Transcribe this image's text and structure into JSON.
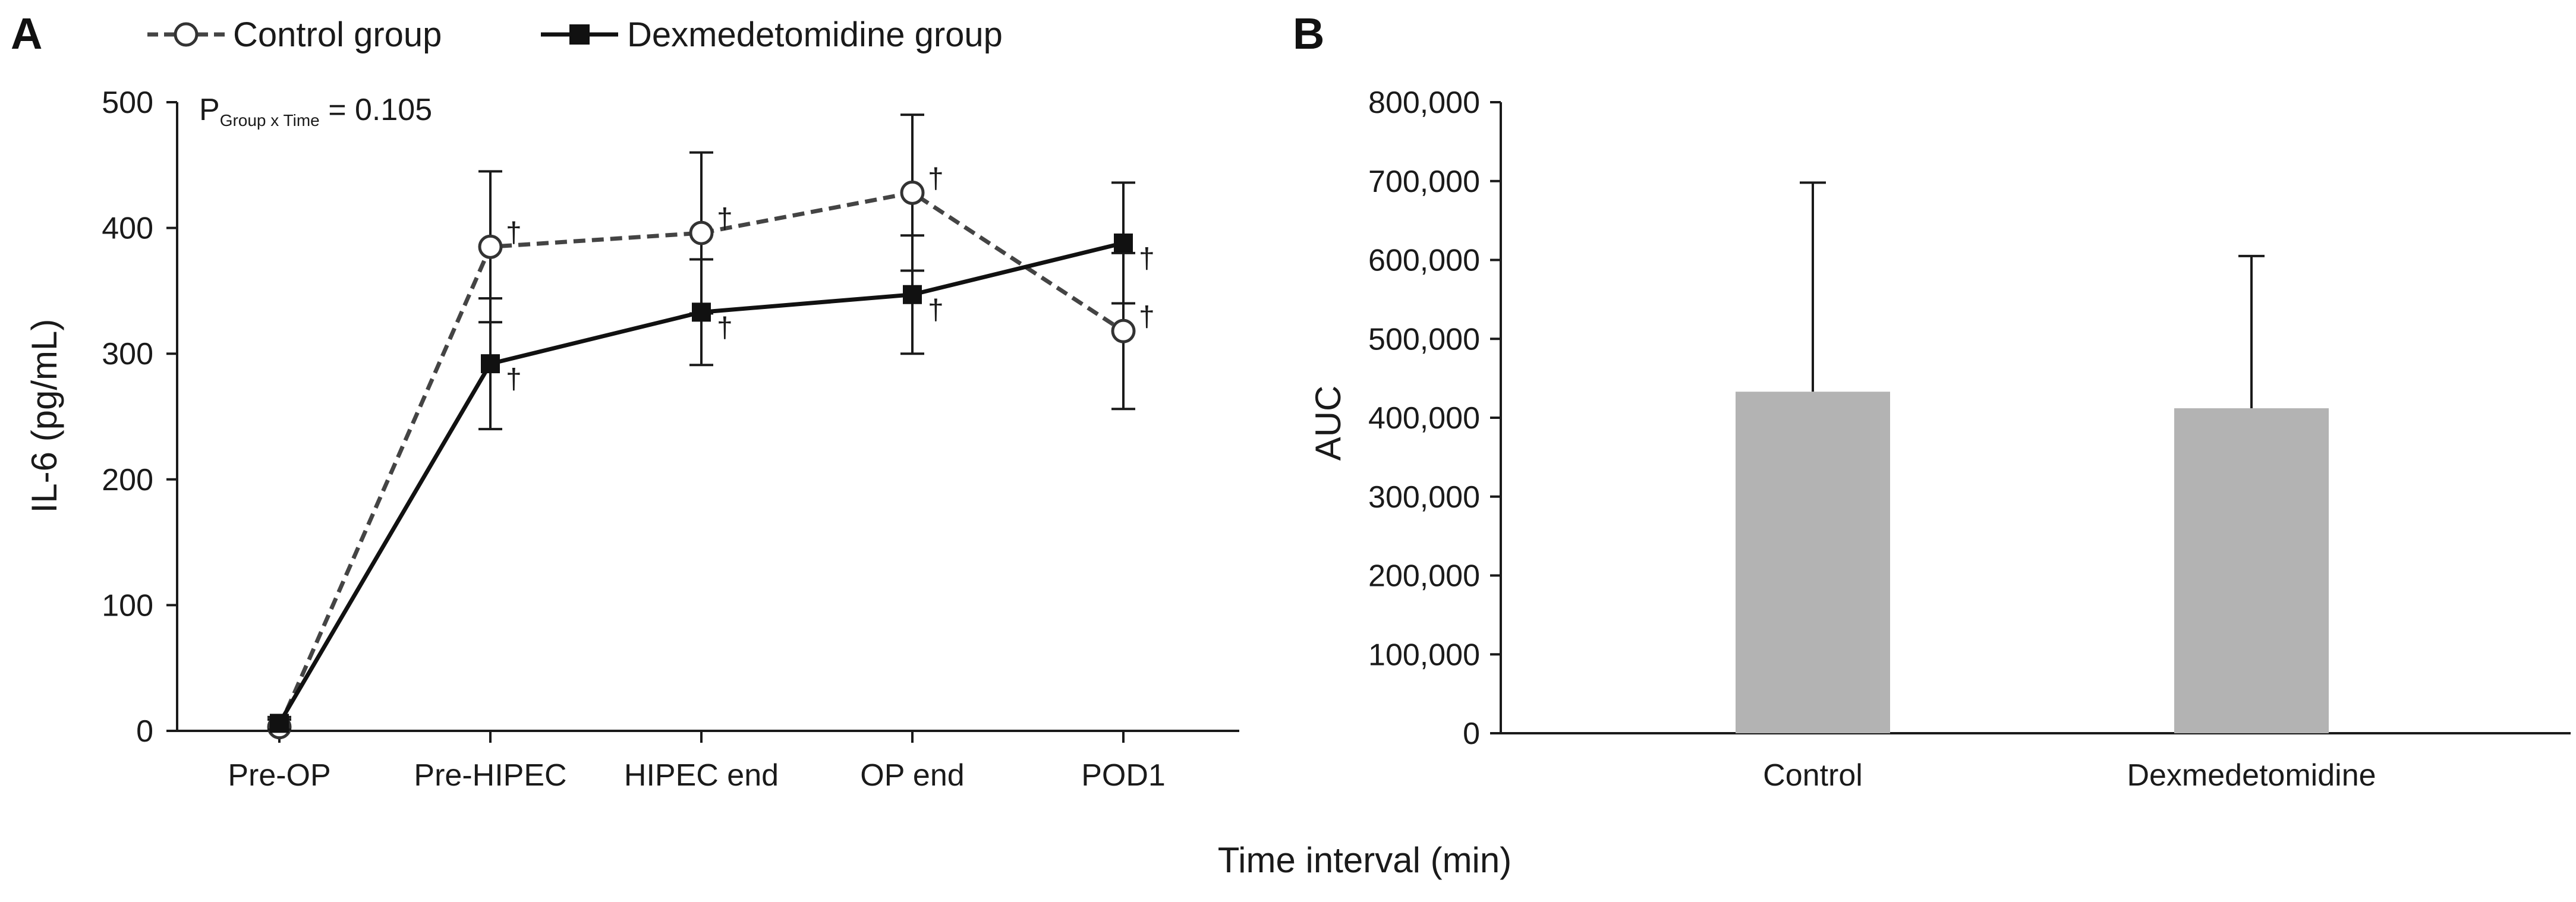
{
  "chart_data": [
    {
      "panel": "A",
      "type": "line",
      "categories": [
        "Pre-OP",
        "Pre-HIPEC",
        "HIPEC end",
        "OP end",
        "POD1"
      ],
      "ylabel": "IL-6 (pg/mL)",
      "ylim": [
        0,
        500
      ],
      "yticks": [
        "0",
        "100",
        "200",
        "300",
        "400",
        "500"
      ],
      "annotation": {
        "p_main": "P",
        "p_sub": "Group x Time",
        "p_value": " = 0.105"
      },
      "series": [
        {
          "name": "Control group",
          "style": "dashed",
          "marker": "open-circle",
          "color": "#444444",
          "values": [
            3,
            385,
            396,
            428,
            318
          ],
          "error": [
            6,
            60,
            64,
            62,
            62
          ],
          "significance": [
            "",
            "†",
            "†",
            "†",
            "†"
          ]
        },
        {
          "name": "Dexmedetomidine group",
          "style": "solid",
          "marker": "filled-square",
          "color": "#111111",
          "values": [
            6,
            292,
            333,
            347,
            388
          ],
          "error": [
            5,
            52,
            42,
            47,
            48
          ],
          "significance": [
            "",
            "†",
            "†",
            "†",
            "†"
          ]
        }
      ]
    },
    {
      "panel": "B",
      "type": "bar",
      "categories": [
        "Control",
        "Dexmedetomidine"
      ],
      "values": [
        433000,
        412000
      ],
      "error_upper": [
        698000,
        605000
      ],
      "ylabel": "AUC",
      "ylim": [
        0,
        800000
      ],
      "yticks": [
        "0",
        "100,000",
        "200,000",
        "300,000",
        "400,000",
        "500,000",
        "600,000",
        "700,000",
        "800,000"
      ],
      "bar_color": "#b3b3b3"
    }
  ],
  "shared_xlabel": "Time interval (min)"
}
